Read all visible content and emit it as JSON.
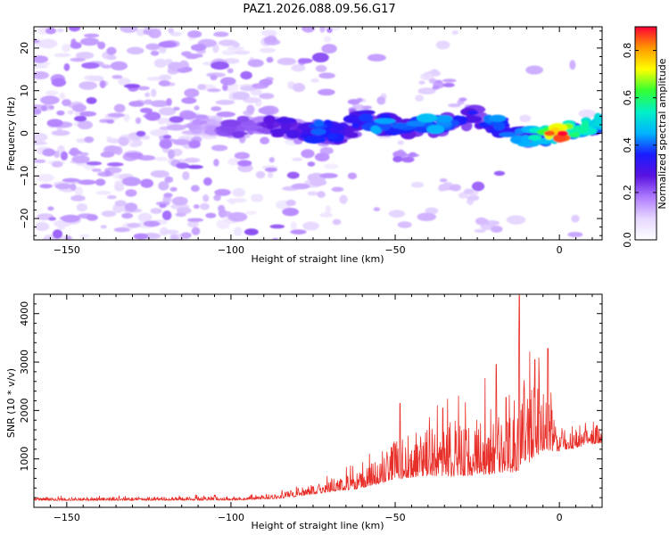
{
  "title": "PAZ1.2026.088.09.56.G17",
  "colors": {
    "snr_line": "#e8302a",
    "frame": "#000000",
    "colormap": [
      "#ffffff",
      "#e6d7ff",
      "#b07cff",
      "#5a12e0",
      "#1b1bff",
      "#00b4ff",
      "#00f0c8",
      "#33ff33",
      "#ffff00",
      "#ff9900",
      "#ff0033"
    ]
  },
  "chart_data": [
    {
      "type": "heatmap",
      "name": "spectrogram",
      "xlabel": "Height of straight line (km)",
      "ylabel": "Frequency (Hz)",
      "xlim": [
        -160,
        13
      ],
      "ylim": [
        -25,
        25
      ],
      "xticks": [
        -150,
        -100,
        -50,
        0
      ],
      "yticks": [
        -20,
        -10,
        0,
        10,
        20
      ],
      "colorbar": {
        "label": "Normalized spectral amplitude",
        "range": [
          0,
          0.9
        ],
        "ticks": [
          "0.0",
          "0.2",
          "0.4",
          "0.6",
          "0.8"
        ]
      },
      "ridge": [
        {
          "h": -110,
          "f": 2,
          "a": 0.15
        },
        {
          "h": -100,
          "f": 1,
          "a": 0.22
        },
        {
          "h": -90,
          "f": 2,
          "a": 0.25
        },
        {
          "h": -80,
          "f": 1,
          "a": 0.3
        },
        {
          "h": -75,
          "f": 0.5,
          "a": 0.42
        },
        {
          "h": -65,
          "f": 0,
          "a": 0.32
        },
        {
          "h": -60,
          "f": 4,
          "a": 0.35
        },
        {
          "h": -55,
          "f": 2,
          "a": 0.45
        },
        {
          "h": -50,
          "f": 2,
          "a": 0.42
        },
        {
          "h": -45,
          "f": 1,
          "a": 0.4
        },
        {
          "h": -40,
          "f": 2,
          "a": 0.45
        },
        {
          "h": -35,
          "f": 2,
          "a": 0.42
        },
        {
          "h": -30,
          "f": 3,
          "a": 0.38
        },
        {
          "h": -25,
          "f": 4,
          "a": 0.35
        },
        {
          "h": -20,
          "f": 2,
          "a": 0.42
        },
        {
          "h": -15,
          "f": 1,
          "a": 0.4
        },
        {
          "h": -10,
          "f": -1,
          "a": 0.45
        },
        {
          "h": -5,
          "f": -1,
          "a": 0.6
        },
        {
          "h": 0,
          "f": 0,
          "a": 0.9
        },
        {
          "h": 5,
          "f": 1,
          "a": 0.6
        },
        {
          "h": 10,
          "f": 2,
          "a": 0.5
        },
        {
          "h": 13,
          "f": 3,
          "a": 0.55
        }
      ]
    },
    {
      "type": "line",
      "name": "snr",
      "xlabel": "Height of straight line (km)",
      "ylabel": "SNR (10 * v/v)",
      "xlim": [
        -160,
        13
      ],
      "ylim": [
        0,
        4400
      ],
      "xticks": [
        -150,
        -100,
        -50,
        0
      ],
      "yticks": [
        1000,
        2000,
        3000,
        4000
      ],
      "envelope": [
        {
          "h": -160,
          "base": 150,
          "amp": 60
        },
        {
          "h": -100,
          "base": 160,
          "amp": 80
        },
        {
          "h": -85,
          "base": 200,
          "amp": 120
        },
        {
          "h": -70,
          "base": 350,
          "amp": 250
        },
        {
          "h": -60,
          "base": 450,
          "amp": 350
        },
        {
          "h": -50,
          "base": 700,
          "amp": 800
        },
        {
          "h": -40,
          "base": 800,
          "amp": 1000
        },
        {
          "h": -30,
          "base": 800,
          "amp": 1100
        },
        {
          "h": -20,
          "base": 900,
          "amp": 1400
        },
        {
          "h": -13,
          "base": 1000,
          "amp": 1800
        },
        {
          "h": -9,
          "base": 1200,
          "amp": 1800
        },
        {
          "h": -5,
          "base": 1400,
          "amp": 1600
        },
        {
          "h": 0,
          "base": 1200,
          "amp": 300
        },
        {
          "h": 13,
          "base": 1400,
          "amp": 400
        }
      ],
      "peaks": [
        {
          "h": -48.5,
          "v": 2150
        },
        {
          "h": -35.5,
          "v": 2050
        },
        {
          "h": -19.2,
          "v": 2950
        },
        {
          "h": -12.2,
          "v": 4380
        },
        {
          "h": -7.5,
          "v": 3050
        },
        {
          "h": -3.5,
          "v": 3280
        }
      ]
    }
  ]
}
